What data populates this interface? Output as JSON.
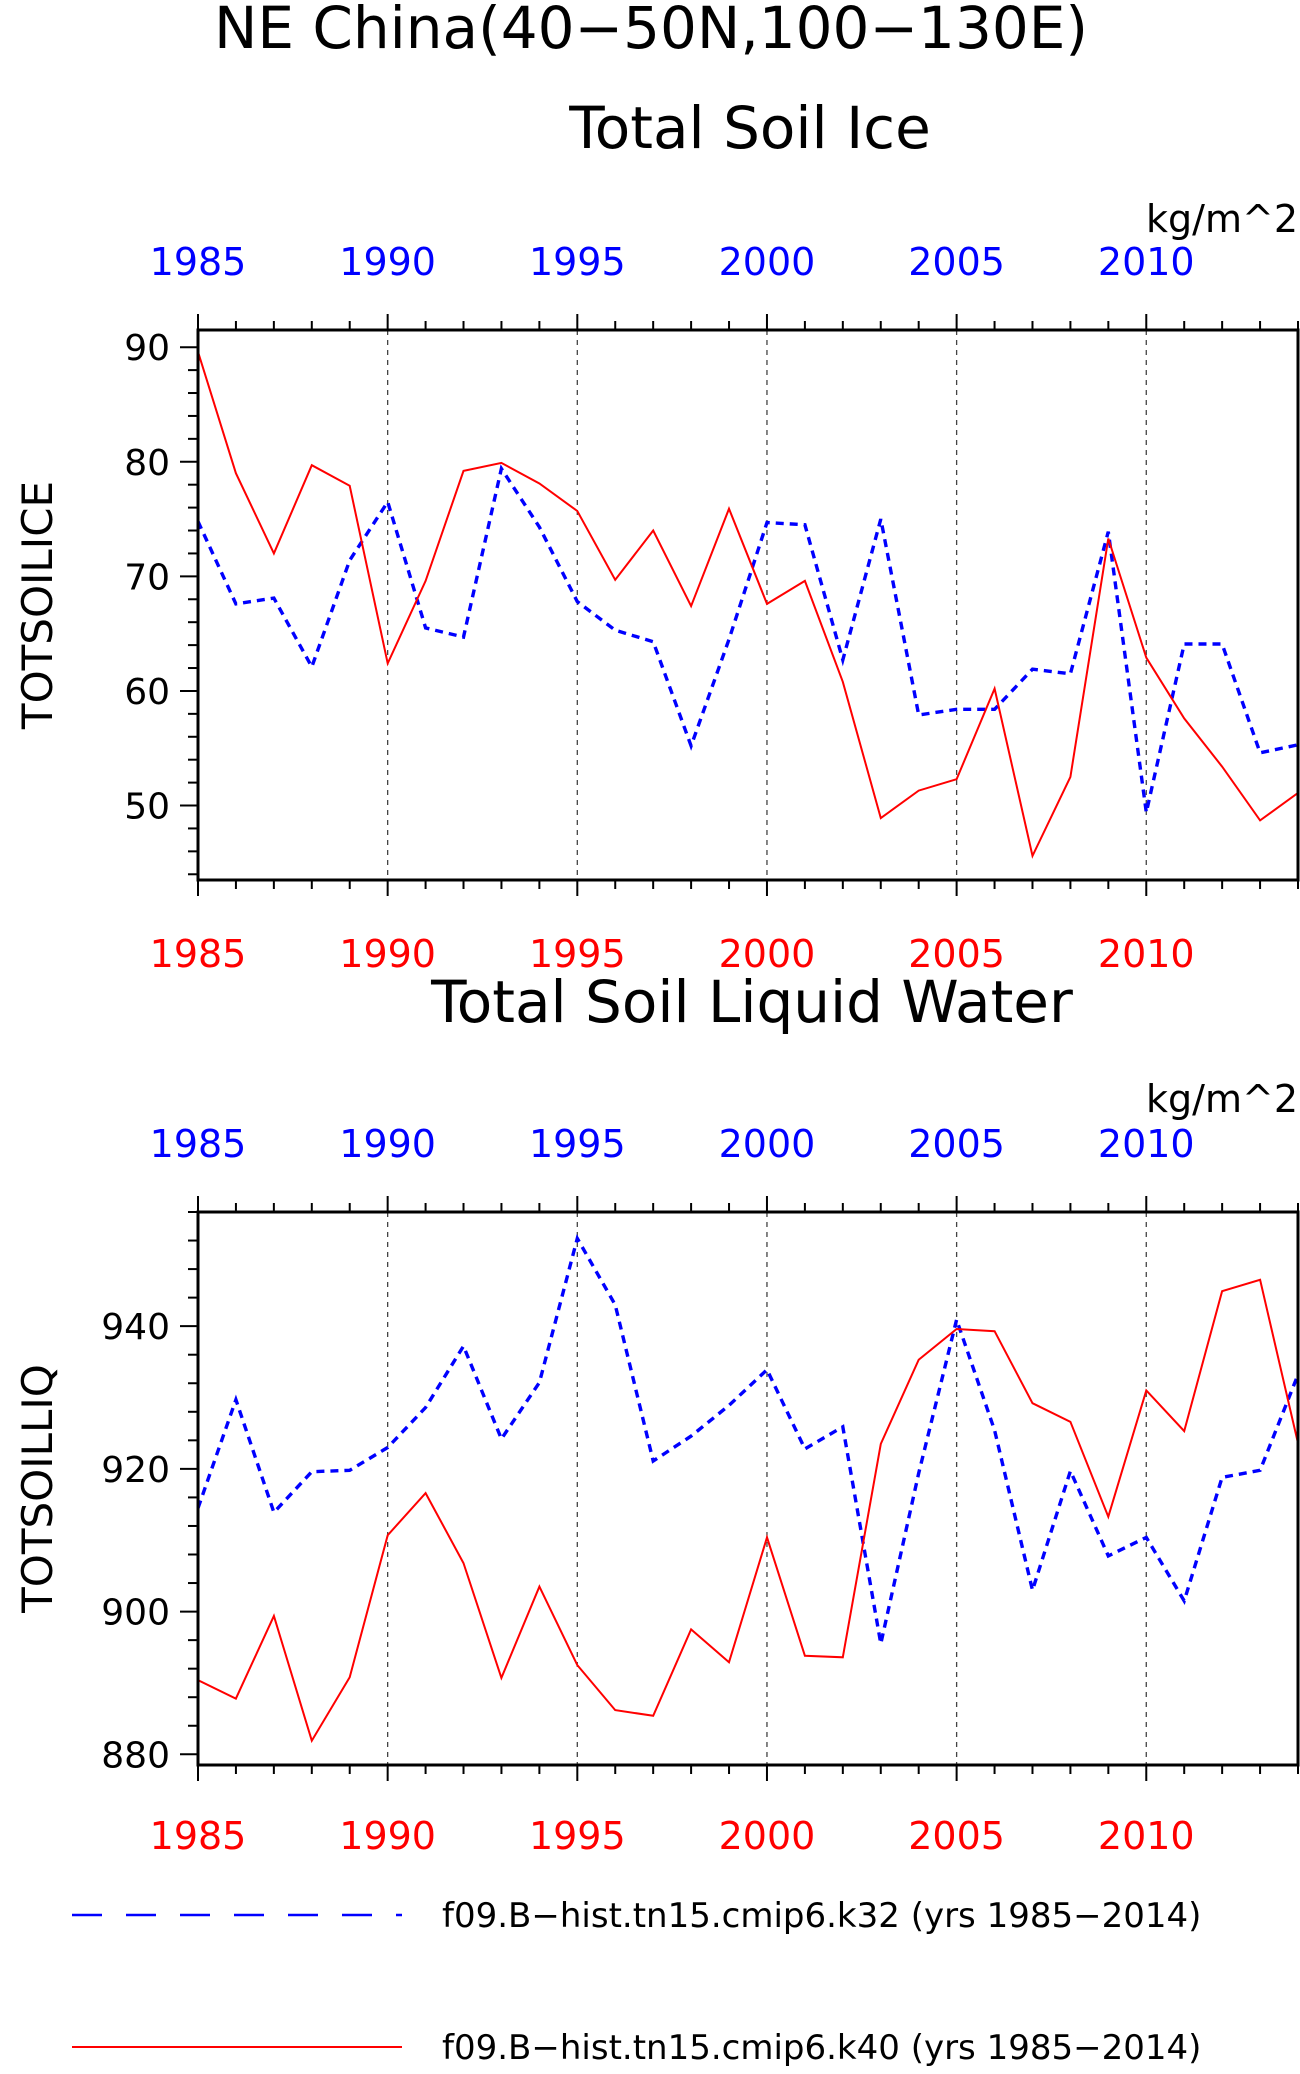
{
  "figure": {
    "title": "NE China(40−50N,100−130E)"
  },
  "legend": {
    "placement": "bottom",
    "entries": [
      {
        "label": "f09.B−hist.tn15.cmip6.k32 (yrs 1985−2014)",
        "color": "#0000ff",
        "style": "dashed"
      },
      {
        "label": "f09.B−hist.tn15.cmip6.k40 (yrs 1985−2014)",
        "color": "#ff0000",
        "style": "solid"
      }
    ]
  },
  "chart_data": [
    {
      "type": "line",
      "title": "Total Soil Ice",
      "units": "kg/m^2",
      "ylabel": "TOTSOILICE",
      "xlabel": "",
      "xlim": [
        1985,
        2014
      ],
      "ylim": [
        43.5,
        91.5
      ],
      "yticks": [
        50,
        60,
        70,
        80,
        90
      ],
      "xticks": [
        1985,
        1990,
        1995,
        2000,
        2005,
        2010
      ],
      "top_tick_color": "#0000ff",
      "bottom_tick_color": "#ff0000",
      "grid": "vertical dashed at 1990, 1995, 2000, 2005, 2010",
      "x": [
        1985,
        1986,
        1987,
        1988,
        1989,
        1990,
        1991,
        1992,
        1993,
        1994,
        1995,
        1996,
        1997,
        1998,
        1999,
        2000,
        2001,
        2002,
        2003,
        2004,
        2005,
        2006,
        2007,
        2008,
        2009,
        2010,
        2011,
        2012,
        2013,
        2014
      ],
      "series": [
        {
          "name": "f09.B−hist.tn15.cmip6.k32 (yrs 1985−2014)",
          "color": "#0000ff",
          "style": "dashed",
          "values": [
            74.8,
            67.6,
            68.1,
            62.1,
            71.4,
            76.5,
            65.5,
            64.7,
            79.4,
            74.3,
            67.8,
            65.3,
            64.3,
            55.2,
            64.5,
            74.7,
            74.5,
            62.7,
            75.0,
            57.9,
            58.4,
            58.4,
            61.9,
            61.5,
            73.9,
            49.4,
            64.1,
            64.1,
            54.6,
            55.3
          ]
        },
        {
          "name": "f09.B−hist.tn15.cmip6.k40 (yrs 1985−2014)",
          "color": "#ff0000",
          "style": "solid",
          "values": [
            89.6,
            79.0,
            72.0,
            79.7,
            77.9,
            62.4,
            69.6,
            79.2,
            79.9,
            78.1,
            75.7,
            69.7,
            74.0,
            67.4,
            75.9,
            67.6,
            69.6,
            60.8,
            48.9,
            51.3,
            52.3,
            60.2,
            45.6,
            52.5,
            73.3,
            62.9,
            57.6,
            53.4,
            48.7,
            51.1
          ]
        }
      ]
    },
    {
      "type": "line",
      "title": "Total Soil Liquid Water",
      "units": "kg/m^2",
      "ylabel": "TOTSOILLIQ",
      "xlabel": "",
      "xlim": [
        1985,
        2014
      ],
      "ylim": [
        878.5,
        956
      ],
      "yticks": [
        880,
        900,
        920,
        940
      ],
      "xticks": [
        1985,
        1990,
        1995,
        2000,
        2005,
        2010
      ],
      "top_tick_color": "#0000ff",
      "bottom_tick_color": "#ff0000",
      "grid": "vertical dashed at 1990, 1995, 2000, 2005, 2010",
      "x": [
        1985,
        1986,
        1987,
        1988,
        1989,
        1990,
        1991,
        1992,
        1993,
        1994,
        1995,
        1996,
        1997,
        1998,
        1999,
        2000,
        2001,
        2002,
        2003,
        2004,
        2005,
        2006,
        2007,
        2008,
        2009,
        2010,
        2011,
        2012,
        2013,
        2014
      ],
      "series": [
        {
          "name": "f09.B−hist.tn15.cmip6.k32 (yrs 1985−2014)",
          "color": "#0000ff",
          "style": "dashed",
          "values": [
            914.5,
            929.7,
            913.9,
            919.6,
            919.8,
            923.0,
            928.6,
            937.2,
            924.2,
            932.1,
            952.3,
            943.0,
            921.1,
            924.6,
            928.9,
            933.9,
            922.8,
            925.9,
            895.5,
            919.4,
            940.9,
            925.4,
            903.0,
            919.7,
            907.8,
            910.4,
            901.5,
            918.8,
            919.8,
            933.2
          ]
        },
        {
          "name": "f09.B−hist.tn15.cmip6.k40 (yrs 1985−2014)",
          "color": "#ff0000",
          "style": "solid",
          "values": [
            890.4,
            887.8,
            899.4,
            881.9,
            890.8,
            910.7,
            916.6,
            906.8,
            890.7,
            903.5,
            892.5,
            886.2,
            885.4,
            897.5,
            892.9,
            910.4,
            893.8,
            893.6,
            923.5,
            935.3,
            939.6,
            939.3,
            929.2,
            926.6,
            913.3,
            931.0,
            925.3,
            944.9,
            946.5,
            923.6
          ]
        }
      ]
    }
  ]
}
